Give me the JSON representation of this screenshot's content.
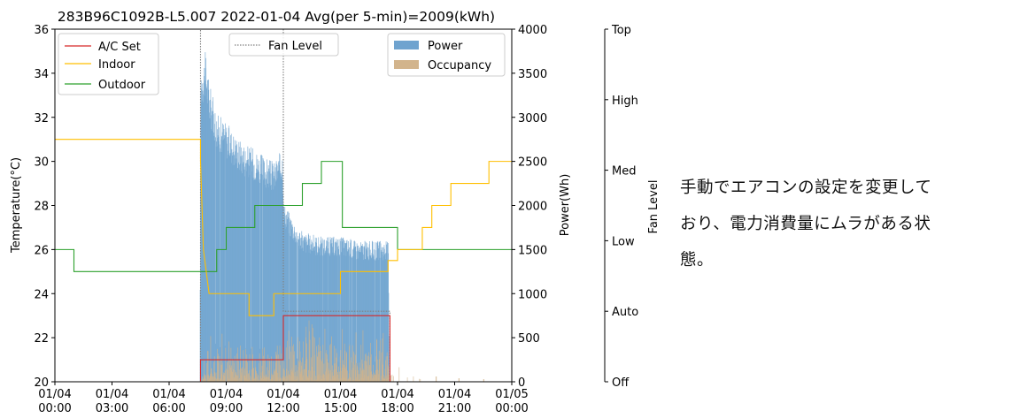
{
  "chart_data": {
    "type": "line",
    "title": "283B96C1092B-L5.007 2022-01-04 Avg(per 5-min)=2009(kWh)",
    "ylabel_left": "Temperature(°C)",
    "ylabel_right": "Power(Wh)",
    "ylabel_fan": "Fan Level",
    "ylim_left": [
      20,
      36
    ],
    "ylim_right": [
      0,
      4000
    ],
    "xlim_hours": [
      0,
      24
    ],
    "x_tick_labels": [
      [
        "01/04",
        "00:00"
      ],
      [
        "01/04",
        "03:00"
      ],
      [
        "01/04",
        "06:00"
      ],
      [
        "01/04",
        "09:00"
      ],
      [
        "01/04",
        "12:00"
      ],
      [
        "01/04",
        "15:00"
      ],
      [
        "01/04",
        "18:00"
      ],
      [
        "01/04",
        "21:00"
      ],
      [
        "01/05",
        "00:00"
      ]
    ],
    "y_ticks_left": [
      20,
      22,
      24,
      26,
      28,
      30,
      32,
      34,
      36
    ],
    "y_ticks_right": [
      0,
      500,
      1000,
      1500,
      2000,
      2500,
      3000,
      3500,
      4000
    ],
    "fan_levels": [
      "Off",
      "Auto",
      "Low",
      "Med",
      "High",
      "Top"
    ],
    "legend_left": [
      "A/C Set",
      "Indoor",
      "Outdoor"
    ],
    "legend_middle": [
      "Fan Level"
    ],
    "legend_right": [
      "Power",
      "Occupancy"
    ],
    "colors": {
      "ac_set": "#d62728",
      "indoor": "#ffbf00",
      "outdoor": "#2ca02c",
      "fan": "#808080",
      "power": "#6fa3cf",
      "occupancy": "#d2b48c"
    },
    "series": [
      {
        "name": "A/C Set",
        "points": [
          [
            0,
            20
          ],
          [
            7.65,
            20
          ],
          [
            7.65,
            21
          ],
          [
            12,
            21
          ],
          [
            12,
            23
          ],
          [
            17.6,
            23
          ],
          [
            17.6,
            20
          ],
          [
            24,
            20
          ]
        ]
      },
      {
        "name": "Indoor",
        "points": [
          [
            0,
            31
          ],
          [
            7.65,
            31
          ],
          [
            7.65,
            30
          ],
          [
            7.8,
            26
          ],
          [
            8.1,
            24
          ],
          [
            10.2,
            24
          ],
          [
            10.2,
            23
          ],
          [
            11.5,
            23
          ],
          [
            11.5,
            24
          ],
          [
            15,
            24
          ],
          [
            15,
            25
          ],
          [
            17.5,
            25
          ],
          [
            17.5,
            25.5
          ],
          [
            18,
            25.5
          ],
          [
            18,
            26
          ],
          [
            19.3,
            26
          ],
          [
            19.3,
            27
          ],
          [
            19.8,
            27
          ],
          [
            19.8,
            28
          ],
          [
            20.8,
            28
          ],
          [
            20.8,
            29
          ],
          [
            22.8,
            29
          ],
          [
            22.8,
            30
          ],
          [
            24,
            30
          ]
        ]
      },
      {
        "name": "Outdoor",
        "points": [
          [
            0,
            26
          ],
          [
            1.0,
            26
          ],
          [
            1.0,
            25
          ],
          [
            8.5,
            25
          ],
          [
            8.5,
            26
          ],
          [
            9.0,
            26
          ],
          [
            9.0,
            27
          ],
          [
            10.5,
            27
          ],
          [
            10.5,
            28
          ],
          [
            13.0,
            28
          ],
          [
            13.0,
            29
          ],
          [
            14.0,
            29
          ],
          [
            14.0,
            30
          ],
          [
            15.1,
            30
          ],
          [
            15.1,
            27
          ],
          [
            18.0,
            27
          ],
          [
            18.0,
            26
          ],
          [
            24,
            26
          ]
        ]
      },
      {
        "name": "Fan Level",
        "points": [
          [
            0,
            0
          ],
          [
            7.65,
            0
          ],
          [
            7.65,
            5
          ],
          [
            12.0,
            5
          ],
          [
            12.0,
            1
          ],
          [
            17.6,
            1
          ],
          [
            17.6,
            0
          ],
          [
            24,
            0
          ]
        ]
      },
      {
        "name": "Power",
        "points": [
          [
            7.6,
            0
          ],
          [
            7.65,
            3600
          ],
          [
            7.9,
            3750
          ],
          [
            8.1,
            3400
          ],
          [
            8.5,
            3050
          ],
          [
            9.0,
            2950
          ],
          [
            9.5,
            2800
          ],
          [
            10.0,
            2700
          ],
          [
            10.5,
            2650
          ],
          [
            11.0,
            2550
          ],
          [
            11.5,
            2500
          ],
          [
            11.95,
            2650
          ],
          [
            12.0,
            2050
          ],
          [
            12.5,
            1850
          ],
          [
            13.0,
            1700
          ],
          [
            14.0,
            1650
          ],
          [
            15.0,
            1650
          ],
          [
            16.0,
            1600
          ],
          [
            17.0,
            1600
          ],
          [
            17.5,
            1600
          ],
          [
            17.55,
            0
          ]
        ]
      },
      {
        "name": "Occupancy",
        "points": [
          [
            7.6,
            0
          ],
          [
            8.0,
            350
          ],
          [
            9.0,
            320
          ],
          [
            10.0,
            250
          ],
          [
            11.0,
            280
          ],
          [
            12.0,
            350
          ],
          [
            13.0,
            380
          ],
          [
            14.0,
            420
          ],
          [
            15.0,
            400
          ],
          [
            16.0,
            420
          ],
          [
            17.0,
            450
          ],
          [
            17.5,
            300
          ],
          [
            18.2,
            200
          ],
          [
            18.6,
            180
          ],
          [
            19.0,
            80
          ],
          [
            24,
            0
          ]
        ]
      }
    ]
  },
  "annotation": {
    "lines": [
      "手動でエアコンの設定を変更して",
      "おり、電力消費量にムラがある状",
      "態。"
    ]
  }
}
